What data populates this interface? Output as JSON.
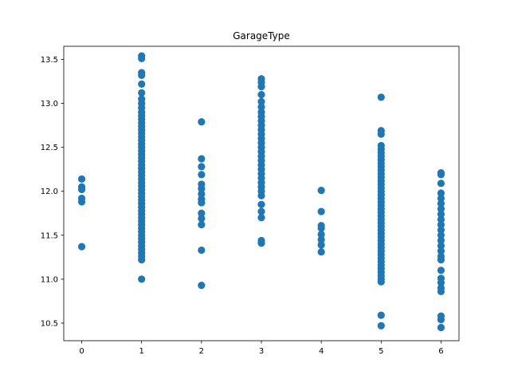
{
  "chart_data": {
    "type": "scatter",
    "title": "GarageType",
    "xlabel": "",
    "ylabel": "",
    "xlim": [
      -0.3,
      6.3
    ],
    "ylim": [
      10.3,
      13.65
    ],
    "xticks": [
      0,
      1,
      2,
      3,
      4,
      5,
      6
    ],
    "yticks": [
      10.5,
      11.0,
      11.5,
      12.0,
      12.5,
      13.0,
      13.5
    ],
    "ytick_labels": [
      "10.5",
      "11.0",
      "11.5",
      "12.0",
      "12.5",
      "13.0",
      "13.5"
    ],
    "grid": false,
    "marker_color": "#1f77b4",
    "series": [
      {
        "x": 0,
        "y": [
          12.14,
          12.05,
          12.02,
          11.92,
          11.88,
          11.37
        ]
      },
      {
        "x": 1,
        "y": [
          13.54,
          13.51,
          13.35,
          13.32,
          13.22,
          13.12,
          13.05,
          13.0,
          12.95,
          12.9,
          12.86,
          12.82,
          12.78,
          12.74,
          12.7,
          12.66,
          12.62,
          12.58,
          12.54,
          12.5,
          12.46,
          12.42,
          12.38,
          12.34,
          12.3,
          12.26,
          12.22,
          12.18,
          12.14,
          12.1,
          12.06,
          12.02,
          11.98,
          11.94,
          11.9,
          11.86,
          11.82,
          11.78,
          11.74,
          11.7,
          11.66,
          11.62,
          11.58,
          11.54,
          11.5,
          11.46,
          11.42,
          11.38,
          11.34,
          11.3,
          11.26,
          11.22,
          11.0
        ]
      },
      {
        "x": 2,
        "y": [
          12.79,
          12.37,
          12.28,
          12.19,
          12.08,
          12.03,
          11.97,
          11.91,
          11.87,
          11.75,
          11.69,
          11.62,
          11.33,
          10.93
        ]
      },
      {
        "x": 3,
        "y": [
          13.28,
          13.24,
          13.19,
          13.1,
          13.02,
          12.96,
          12.9,
          12.85,
          12.8,
          12.75,
          12.7,
          12.65,
          12.6,
          12.55,
          12.5,
          12.45,
          12.4,
          12.35,
          12.3,
          12.25,
          12.2,
          12.15,
          12.1,
          12.05,
          12.0,
          11.95,
          11.85,
          11.77,
          11.7,
          11.44,
          11.41
        ]
      },
      {
        "x": 4,
        "y": [
          12.01,
          11.77,
          11.61,
          11.58,
          11.51,
          11.45,
          11.39,
          11.31
        ]
      },
      {
        "x": 5,
        "y": [
          13.07,
          12.69,
          12.65,
          12.52,
          12.48,
          12.44,
          12.4,
          12.36,
          12.32,
          12.28,
          12.24,
          12.2,
          12.16,
          12.12,
          12.08,
          12.04,
          12.0,
          11.96,
          11.92,
          11.88,
          11.84,
          11.8,
          11.76,
          11.72,
          11.68,
          11.64,
          11.6,
          11.56,
          11.52,
          11.48,
          11.44,
          11.4,
          11.36,
          11.32,
          11.28,
          11.24,
          11.2,
          11.16,
          11.12,
          11.08,
          11.04,
          11.0,
          10.97,
          10.59,
          10.47
        ]
      },
      {
        "x": 6,
        "y": [
          12.21,
          12.19,
          12.09,
          11.98,
          11.92,
          11.86,
          11.8,
          11.74,
          11.68,
          11.62,
          11.56,
          11.5,
          11.44,
          11.38,
          11.32,
          11.26,
          11.22,
          11.1,
          11.01,
          10.96,
          10.9,
          10.86,
          10.58,
          10.54,
          10.45
        ]
      }
    ]
  }
}
